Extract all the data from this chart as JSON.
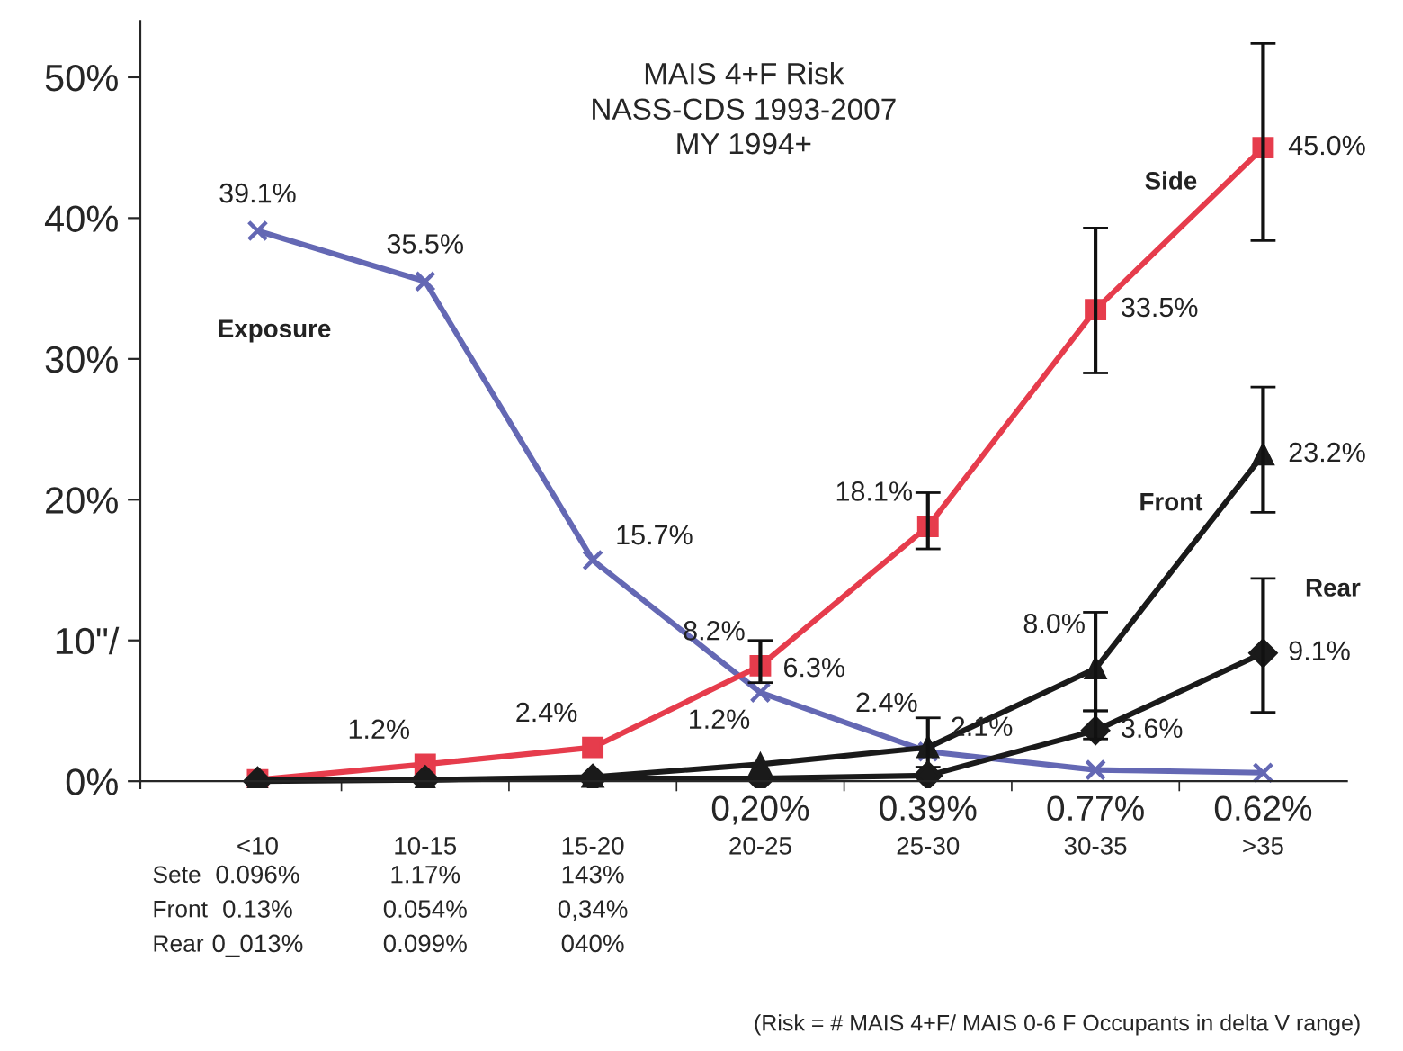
{
  "chart_data": {
    "type": "line",
    "title": "MAIS 4+F Risk",
    "subtitle": "NASS-CDS 1993-2007\nMY 1994+",
    "categories": [
      "<10",
      "10-15",
      "15-20",
      "20-25",
      "25-30",
      "30-35",
      ">35"
    ],
    "ylim": [
      -0.5,
      54
    ],
    "yticks": [
      {
        "value": 0,
        "label": "0%"
      },
      {
        "value": 10,
        "label": "10\"/"
      },
      {
        "value": 20,
        "label": "20%"
      },
      {
        "value": 30,
        "label": "30%"
      },
      {
        "value": 40,
        "label": "40%"
      },
      {
        "value": 50,
        "label": "50%"
      }
    ],
    "grid": false,
    "legend": false,
    "series": [
      {
        "name": "Exposure",
        "color": "#6468b4",
        "marker": "cross",
        "values": [
          39.1,
          35.5,
          15.7,
          6.3,
          2.1,
          0.8,
          0.6
        ],
        "value_labels": [
          "39.1%",
          "35.5%",
          "15.7%",
          "6.3%",
          "2.1%",
          null,
          null
        ]
      },
      {
        "name": "Side",
        "color": "#e63c4c",
        "marker": "square",
        "values": [
          0.1,
          1.2,
          2.4,
          8.2,
          18.1,
          33.5,
          45.0
        ],
        "value_labels": [
          null,
          "1.2%",
          "2.4%",
          "8.2%",
          "18.1%",
          "33.5%",
          "45.0%"
        ],
        "errors": [
          null,
          null,
          null,
          [
            7,
            10
          ],
          [
            16.5,
            20.5
          ],
          [
            29,
            39.3
          ],
          [
            38.4,
            52.4
          ]
        ]
      },
      {
        "name": "Front",
        "color": "#1a1a1a",
        "marker": "triangle",
        "values": [
          0.1,
          0.1,
          0.3,
          1.2,
          2.4,
          8.0,
          23.2
        ],
        "value_labels": [
          null,
          null,
          null,
          "1.2%",
          "2.4%",
          "8.0%",
          "23.2%"
        ],
        "errors": [
          null,
          null,
          null,
          null,
          [
            1,
            4.5
          ],
          [
            5,
            12
          ],
          [
            19.1,
            28
          ]
        ]
      },
      {
        "name": "Rear",
        "color": "#1a1a1a",
        "marker": "diamond",
        "values": [
          0.0,
          0.1,
          0.2,
          0.2,
          0.4,
          3.6,
          9.1
        ],
        "value_labels": [
          null,
          null,
          null,
          null,
          null,
          "3.6%",
          "9.1%"
        ],
        "errors": [
          null,
          null,
          null,
          null,
          null,
          [
            3,
            5
          ],
          [
            4.9,
            14.4
          ]
        ]
      }
    ],
    "annotations": [
      "(Risk = # MAIS 4+F/ MAIS 0-6 F Occupants in delta V range)",
      "Sete",
      "0.096%",
      "1.17%",
      "143%",
      "Front",
      "0.13%",
      "0.054%",
      "0,34%",
      "Rear",
      "0_013%",
      "0.099%",
      "040%",
      "0,20%",
      "0.39%",
      "0.77%",
      "0.62%"
    ]
  }
}
